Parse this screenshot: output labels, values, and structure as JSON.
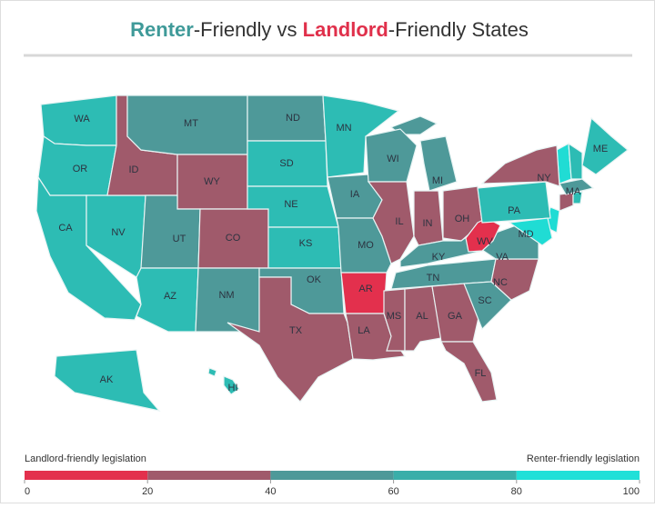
{
  "title": [
    {
      "text": "Renter",
      "color": "#3f9a99",
      "bold": true
    },
    {
      "text": "-Friendly vs ",
      "color": "#333333",
      "bold": false
    },
    {
      "text": "Landlord",
      "color": "#e0304b",
      "bold": true
    },
    {
      "text": "-Friendly States",
      "color": "#333333",
      "bold": false
    }
  ],
  "states": [
    {
      "label": "WA",
      "color": "#2dbcb4"
    },
    {
      "label": "OR",
      "color": "#2dbcb4"
    },
    {
      "label": "CA",
      "color": "#2dbcb4"
    },
    {
      "label": "NV",
      "color": "#2dbcb4"
    },
    {
      "label": "ID",
      "color": "#a05a6b"
    },
    {
      "label": "MT",
      "color": "#4e9999"
    },
    {
      "label": "WY",
      "color": "#a05a6b"
    },
    {
      "label": "UT",
      "color": "#4e9999"
    },
    {
      "label": "CO",
      "color": "#a05a6b"
    },
    {
      "label": "AZ",
      "color": "#2dbcb4"
    },
    {
      "label": "NM",
      "color": "#4e9999"
    },
    {
      "label": "ND",
      "color": "#4e9999"
    },
    {
      "label": "SD",
      "color": "#2dbcb4"
    },
    {
      "label": "NE",
      "color": "#2dbcb4"
    },
    {
      "label": "KS",
      "color": "#2dbcb4"
    },
    {
      "label": "OK",
      "color": "#4e9999"
    },
    {
      "label": "TX",
      "color": "#a05a6b"
    },
    {
      "label": "MN",
      "color": "#2dbcb4"
    },
    {
      "label": "IA",
      "color": "#4e9999"
    },
    {
      "label": "MO",
      "color": "#4e9999"
    },
    {
      "label": "AR",
      "color": "#e3304d"
    },
    {
      "label": "LA",
      "color": "#a05a6b"
    },
    {
      "label": "WI",
      "color": "#4e9999"
    },
    {
      "label": "IL",
      "color": "#a05a6b"
    },
    {
      "label": "MI",
      "color": "#4e9999"
    },
    {
      "label": "IN",
      "color": "#a05a6b"
    },
    {
      "label": "OH",
      "color": "#a05a6b"
    },
    {
      "label": "KY",
      "color": "#4e9999"
    },
    {
      "label": "TN",
      "color": "#4e9999"
    },
    {
      "label": "MS",
      "color": "#a05a6b"
    },
    {
      "label": "AL",
      "color": "#a05a6b"
    },
    {
      "label": "GA",
      "color": "#a05a6b"
    },
    {
      "label": "FL",
      "color": "#a05a6b"
    },
    {
      "label": "SC",
      "color": "#4e9999"
    },
    {
      "label": "NC",
      "color": "#a05a6b"
    },
    {
      "label": "VA",
      "color": "#4e9999"
    },
    {
      "label": "WV",
      "color": "#e3304d"
    },
    {
      "label": "PA",
      "color": "#2dbcb4"
    },
    {
      "label": "NY",
      "color": "#a05a6b"
    },
    {
      "label": "ME",
      "color": "#2dbcb4"
    },
    {
      "label": "MA",
      "color": "#4e9999"
    },
    {
      "label": "MD",
      "color": "#20dcd4"
    },
    {
      "label": "AK",
      "color": "#2dbcb4"
    },
    {
      "label": "HI",
      "color": "#2dbcb4"
    }
  ],
  "legend": {
    "left_label": "Landlord-friendly legislation",
    "right_label": "Renter-friendly legislation",
    "range": [
      0,
      100
    ],
    "ticks": [
      0,
      20,
      40,
      60,
      80,
      100
    ],
    "colors": [
      "#e3304d",
      "#a05a6b",
      "#4e9999",
      "#3aaea9",
      "#20e0d8"
    ]
  }
}
